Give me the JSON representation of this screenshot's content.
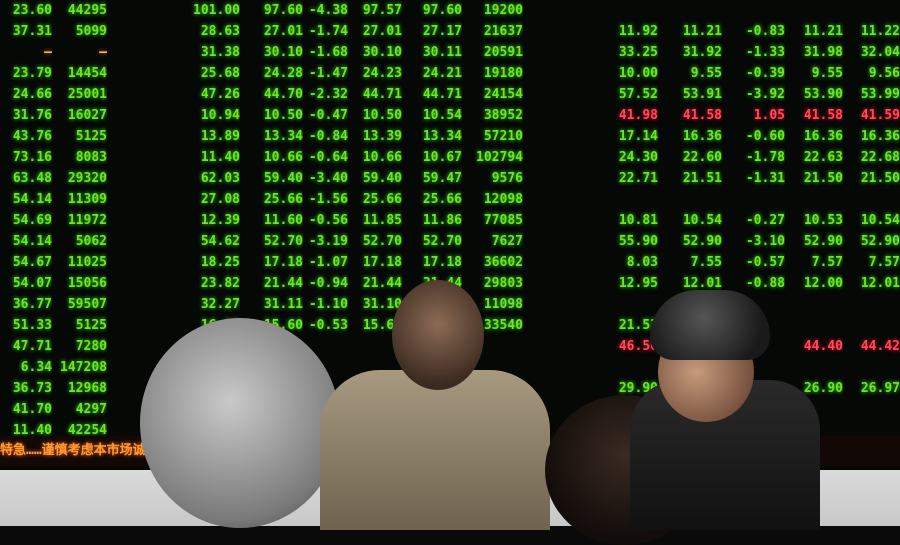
{
  "board": {
    "rows": [
      [
        "23.60",
        "44295",
        "",
        "101.00",
        "97.60",
        "-4.38",
        "97.57",
        "97.60",
        "19200",
        "",
        "",
        "",
        "",
        "",
        ""
      ],
      [
        "37.31",
        "5099",
        "",
        "28.63",
        "27.01",
        "-1.74",
        "27.01",
        "27.17",
        "21637",
        "",
        "11.92",
        "11.21",
        "-0.83",
        "11.21",
        "11.22"
      ],
      [
        "—",
        "—",
        "",
        "31.38",
        "30.10",
        "-1.68",
        "30.10",
        "30.11",
        "20591",
        "",
        "33.25",
        "31.92",
        "-1.33",
        "31.98",
        "32.04"
      ],
      [
        "23.79",
        "14454",
        "",
        "25.68",
        "24.28",
        "-1.47",
        "24.23",
        "24.21",
        "19180",
        "",
        "10.00",
        "9.55",
        "-0.39",
        "9.55",
        "9.56"
      ],
      [
        "24.66",
        "25001",
        "",
        "47.26",
        "44.70",
        "-2.32",
        "44.71",
        "44.71",
        "24154",
        "",
        "57.52",
        "53.91",
        "-3.92",
        "53.90",
        "53.99"
      ],
      [
        "31.76",
        "16027",
        "",
        "10.94",
        "10.50",
        "-0.47",
        "10.50",
        "10.54",
        "38952",
        "",
        "41.98",
        "41.58",
        "1.05",
        "41.58",
        "41.59"
      ],
      [
        "43.76",
        "5125",
        "",
        "13.89",
        "13.34",
        "-0.84",
        "13.39",
        "13.34",
        "57210",
        "",
        "17.14",
        "16.36",
        "-0.60",
        "16.36",
        "16.36"
      ],
      [
        "73.16",
        "8083",
        "",
        "11.40",
        "10.66",
        "-0.64",
        "10.66",
        "10.67",
        "102794",
        "",
        "24.30",
        "22.60",
        "-1.78",
        "22.63",
        "22.68"
      ],
      [
        "63.48",
        "29320",
        "",
        "62.03",
        "59.40",
        "-3.40",
        "59.40",
        "59.47",
        "9576",
        "",
        "22.71",
        "21.51",
        "-1.31",
        "21.50",
        "21.50"
      ],
      [
        "54.14",
        "11309",
        "",
        "27.08",
        "25.66",
        "-1.56",
        "25.66",
        "25.66",
        "12098",
        "",
        "",
        "",
        "",
        "",
        ""
      ],
      [
        "54.69",
        "11972",
        "",
        "12.39",
        "11.60",
        "-0.56",
        "11.85",
        "11.86",
        "77085",
        "",
        "10.81",
        "10.54",
        "-0.27",
        "10.53",
        "10.54"
      ],
      [
        "54.14",
        "5062",
        "",
        "54.62",
        "52.70",
        "-3.19",
        "52.70",
        "52.70",
        "7627",
        "",
        "55.90",
        "52.90",
        "-3.10",
        "52.90",
        "52.90"
      ],
      [
        "54.67",
        "11025",
        "",
        "18.25",
        "17.18",
        "-1.07",
        "17.18",
        "17.18",
        "36602",
        "",
        "8.03",
        "7.55",
        "-0.57",
        "7.57",
        "7.57"
      ],
      [
        "54.07",
        "15056",
        "",
        "23.82",
        "21.44",
        "-0.94",
        "21.44",
        "21.44",
        "29803",
        "",
        "12.95",
        "12.01",
        "-0.88",
        "12.00",
        "12.01"
      ],
      [
        "36.77",
        "59507",
        "",
        "32.27",
        "31.11",
        "-1.10",
        "31.10",
        "31.10",
        "11098",
        "",
        "",
        "",
        "",
        "",
        ""
      ],
      [
        "51.33",
        "5125",
        "",
        "16.10",
        "15.60",
        "-0.53",
        "15.60",
        "15.60",
        "33540",
        "",
        "21.53",
        "",
        "",
        "",
        ""
      ],
      [
        "47.71",
        "7280",
        "",
        "",
        "",
        "",
        "",
        "",
        "",
        "",
        "46.50",
        "",
        "",
        "44.40",
        "44.42"
      ],
      [
        "6.34",
        "147208",
        "",
        "",
        "",
        "",
        "",
        "",
        "",
        "",
        "",
        "",
        "",
        "",
        ""
      ],
      [
        "36.73",
        "12968",
        "",
        "",
        "",
        "",
        "",
        "",
        "",
        "",
        "29.90",
        "",
        "",
        "26.90",
        "26.97"
      ],
      [
        "41.70",
        "4297",
        "",
        "",
        "",
        "",
        "",
        "",
        "",
        "",
        "",
        "",
        "",
        "",
        ""
      ],
      [
        "11.40",
        "42254",
        "",
        "",
        "",
        "",
        "",
        "",
        "",
        "",
        "",
        "",
        "",
        "",
        ""
      ]
    ],
    "ticker": "特急……谨慎考虑本市场诚信义务……"
  }
}
